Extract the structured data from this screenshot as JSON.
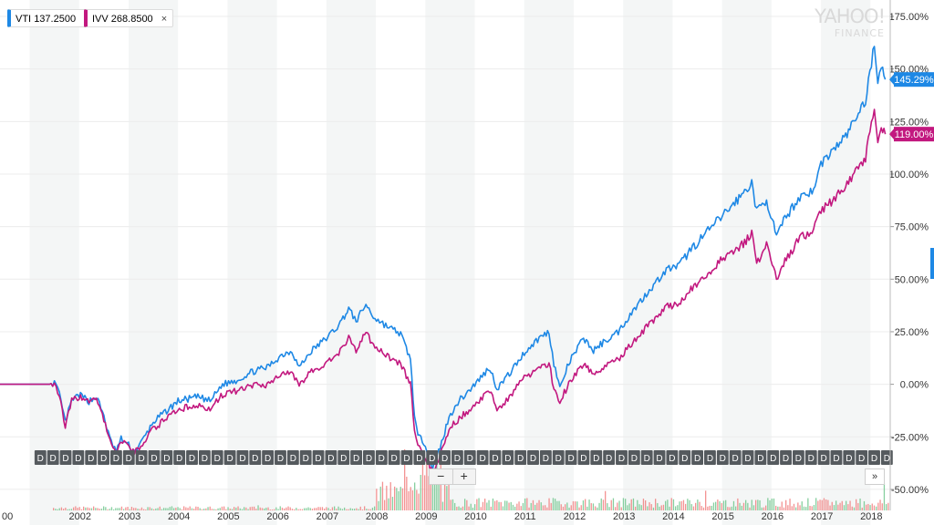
{
  "legend_tags": [
    {
      "symbol": "VTI",
      "value": "137.2500",
      "close_icon": "×",
      "color": "#1e88e5"
    },
    {
      "symbol": "IVV",
      "value": "268.8500",
      "close_icon": "×",
      "color": "#c2187f"
    }
  ],
  "watermark": {
    "line1": "YAHOO!",
    "line2": "FINANCE"
  },
  "controls": {
    "zoom_out": "−",
    "zoom_in": "+",
    "more": "»"
  },
  "colors": {
    "vti": "#1e88e5",
    "ivv": "#c2187f",
    "band": "#f4f6f6",
    "volume_up": "#5fbf7f",
    "volume_down": "#ef6f6f",
    "event_bg": "#555a5e"
  },
  "icons": {
    "close": "close-icon",
    "zoom_out": "minus-icon",
    "zoom_in": "plus-icon",
    "more": "chevron-double-right-icon"
  },
  "chart_data": {
    "type": "line",
    "title": "",
    "xlabel": "",
    "ylabel": "",
    "x_range": [
      2000.4,
      2018.4
    ],
    "ylim": [
      -60,
      175
    ],
    "y_ticks": [
      -50,
      -25,
      0,
      25,
      50,
      75,
      100,
      125,
      150,
      175
    ],
    "y_tick_labels": [
      "-50.00%",
      "-25.00%",
      "0.00%",
      "25.00%",
      "50.00%",
      "75.00%",
      "100.00%",
      "125.00%",
      "150.00%",
      "175.00%"
    ],
    "x_ticks": [
      2002,
      2003,
      2004,
      2005,
      2006,
      2007,
      2008,
      2009,
      2010,
      2011,
      2012,
      2013,
      2014,
      2015,
      2016,
      2017,
      2018
    ],
    "x_tick_labels": [
      "2002",
      "2003",
      "2004",
      "2005",
      "2006",
      "2007",
      "2008",
      "2009",
      "2010",
      "2011",
      "2012",
      "2013",
      "2014",
      "2015",
      "2016",
      "2017",
      "2018"
    ],
    "left_edge_label": "00",
    "grid": "alternating-year-bands",
    "series": [
      {
        "name": "VTI",
        "color": "#1e88e5",
        "last_label": "145.29%",
        "points": [
          [
            2000.4,
            0
          ],
          [
            2001.4,
            0
          ],
          [
            2001.5,
            1
          ],
          [
            2001.6,
            -5
          ],
          [
            2001.72,
            -18
          ],
          [
            2001.85,
            -8
          ],
          [
            2002.0,
            -5
          ],
          [
            2002.2,
            -8
          ],
          [
            2002.35,
            -6
          ],
          [
            2002.5,
            -15
          ],
          [
            2002.62,
            -26
          ],
          [
            2002.75,
            -32
          ],
          [
            2002.85,
            -26
          ],
          [
            2003.0,
            -29
          ],
          [
            2003.12,
            -32
          ],
          [
            2003.25,
            -28
          ],
          [
            2003.5,
            -18
          ],
          [
            2003.8,
            -12
          ],
          [
            2004.0,
            -8
          ],
          [
            2004.4,
            -6
          ],
          [
            2004.65,
            -8
          ],
          [
            2004.9,
            0
          ],
          [
            2005.2,
            2
          ],
          [
            2005.5,
            6
          ],
          [
            2005.8,
            8
          ],
          [
            2006.1,
            14
          ],
          [
            2006.3,
            16
          ],
          [
            2006.45,
            8
          ],
          [
            2006.7,
            16
          ],
          [
            2007.0,
            22
          ],
          [
            2007.25,
            28
          ],
          [
            2007.45,
            36
          ],
          [
            2007.6,
            30
          ],
          [
            2007.8,
            38
          ],
          [
            2007.95,
            32
          ],
          [
            2008.2,
            28
          ],
          [
            2008.5,
            24
          ],
          [
            2008.7,
            12
          ],
          [
            2008.78,
            -15
          ],
          [
            2008.85,
            -25
          ],
          [
            2009.0,
            -28
          ],
          [
            2009.15,
            -40
          ],
          [
            2009.3,
            -30
          ],
          [
            2009.45,
            -18
          ],
          [
            2009.6,
            -10
          ],
          [
            2009.8,
            -5
          ],
          [
            2010.0,
            0
          ],
          [
            2010.3,
            8
          ],
          [
            2010.45,
            -2
          ],
          [
            2010.7,
            5
          ],
          [
            2011.0,
            15
          ],
          [
            2011.3,
            22
          ],
          [
            2011.5,
            25
          ],
          [
            2011.6,
            10
          ],
          [
            2011.72,
            -2
          ],
          [
            2011.9,
            10
          ],
          [
            2012.2,
            22
          ],
          [
            2012.4,
            16
          ],
          [
            2012.6,
            20
          ],
          [
            2012.9,
            25
          ],
          [
            2013.2,
            35
          ],
          [
            2013.5,
            44
          ],
          [
            2013.9,
            55
          ],
          [
            2014.1,
            56
          ],
          [
            2014.4,
            65
          ],
          [
            2014.8,
            75
          ],
          [
            2015.0,
            80
          ],
          [
            2015.4,
            90
          ],
          [
            2015.6,
            96
          ],
          [
            2015.7,
            82
          ],
          [
            2015.9,
            88
          ],
          [
            2016.1,
            70
          ],
          [
            2016.3,
            80
          ],
          [
            2016.6,
            90
          ],
          [
            2016.85,
            92
          ],
          [
            2017.0,
            105
          ],
          [
            2017.5,
            118
          ],
          [
            2017.9,
            135
          ],
          [
            2018.08,
            162
          ],
          [
            2018.15,
            145
          ],
          [
            2018.22,
            152
          ],
          [
            2018.3,
            145
          ]
        ]
      },
      {
        "name": "IVV",
        "color": "#c2187f",
        "last_label": "119.00%",
        "points": [
          [
            2000.4,
            0
          ],
          [
            2001.4,
            0
          ],
          [
            2001.5,
            1
          ],
          [
            2001.6,
            -6
          ],
          [
            2001.72,
            -20
          ],
          [
            2001.85,
            -8
          ],
          [
            2002.0,
            -6
          ],
          [
            2002.2,
            -8
          ],
          [
            2002.35,
            -7
          ],
          [
            2002.5,
            -17
          ],
          [
            2002.62,
            -27
          ],
          [
            2002.75,
            -33
          ],
          [
            2002.85,
            -27
          ],
          [
            2003.0,
            -30
          ],
          [
            2003.12,
            -33
          ],
          [
            2003.25,
            -29
          ],
          [
            2003.5,
            -21
          ],
          [
            2003.8,
            -16
          ],
          [
            2004.0,
            -12
          ],
          [
            2004.4,
            -10
          ],
          [
            2004.65,
            -12
          ],
          [
            2004.9,
            -5
          ],
          [
            2005.2,
            -3
          ],
          [
            2005.5,
            -1
          ],
          [
            2005.8,
            0
          ],
          [
            2006.1,
            5
          ],
          [
            2006.3,
            6
          ],
          [
            2006.45,
            0
          ],
          [
            2006.7,
            6
          ],
          [
            2007.0,
            10
          ],
          [
            2007.25,
            15
          ],
          [
            2007.45,
            22
          ],
          [
            2007.6,
            16
          ],
          [
            2007.8,
            25
          ],
          [
            2007.95,
            18
          ],
          [
            2008.2,
            14
          ],
          [
            2008.5,
            10
          ],
          [
            2008.7,
            0
          ],
          [
            2008.78,
            -22
          ],
          [
            2008.85,
            -30
          ],
          [
            2009.0,
            -34
          ],
          [
            2009.15,
            -42
          ],
          [
            2009.3,
            -34
          ],
          [
            2009.45,
            -24
          ],
          [
            2009.6,
            -18
          ],
          [
            2009.8,
            -14
          ],
          [
            2010.0,
            -10
          ],
          [
            2010.3,
            -3
          ],
          [
            2010.45,
            -12
          ],
          [
            2010.7,
            -6
          ],
          [
            2011.0,
            3
          ],
          [
            2011.3,
            8
          ],
          [
            2011.5,
            10
          ],
          [
            2011.6,
            -2
          ],
          [
            2011.72,
            -8
          ],
          [
            2011.9,
            0
          ],
          [
            2012.2,
            10
          ],
          [
            2012.4,
            4
          ],
          [
            2012.6,
            8
          ],
          [
            2012.9,
            12
          ],
          [
            2013.2,
            20
          ],
          [
            2013.5,
            28
          ],
          [
            2013.9,
            37
          ],
          [
            2014.1,
            38
          ],
          [
            2014.4,
            46
          ],
          [
            2014.8,
            54
          ],
          [
            2015.0,
            60
          ],
          [
            2015.4,
            66
          ],
          [
            2015.6,
            72
          ],
          [
            2015.7,
            58
          ],
          [
            2015.9,
            66
          ],
          [
            2016.1,
            50
          ],
          [
            2016.3,
            60
          ],
          [
            2016.6,
            70
          ],
          [
            2016.85,
            73
          ],
          [
            2017.0,
            82
          ],
          [
            2017.5,
            94
          ],
          [
            2017.9,
            108
          ],
          [
            2018.08,
            132
          ],
          [
            2018.15,
            115
          ],
          [
            2018.22,
            122
          ],
          [
            2018.3,
            119
          ]
        ]
      }
    ],
    "event_markers": {
      "label": "D",
      "count": 68,
      "x_range": [
        2001.2,
        2018.35
      ]
    }
  }
}
